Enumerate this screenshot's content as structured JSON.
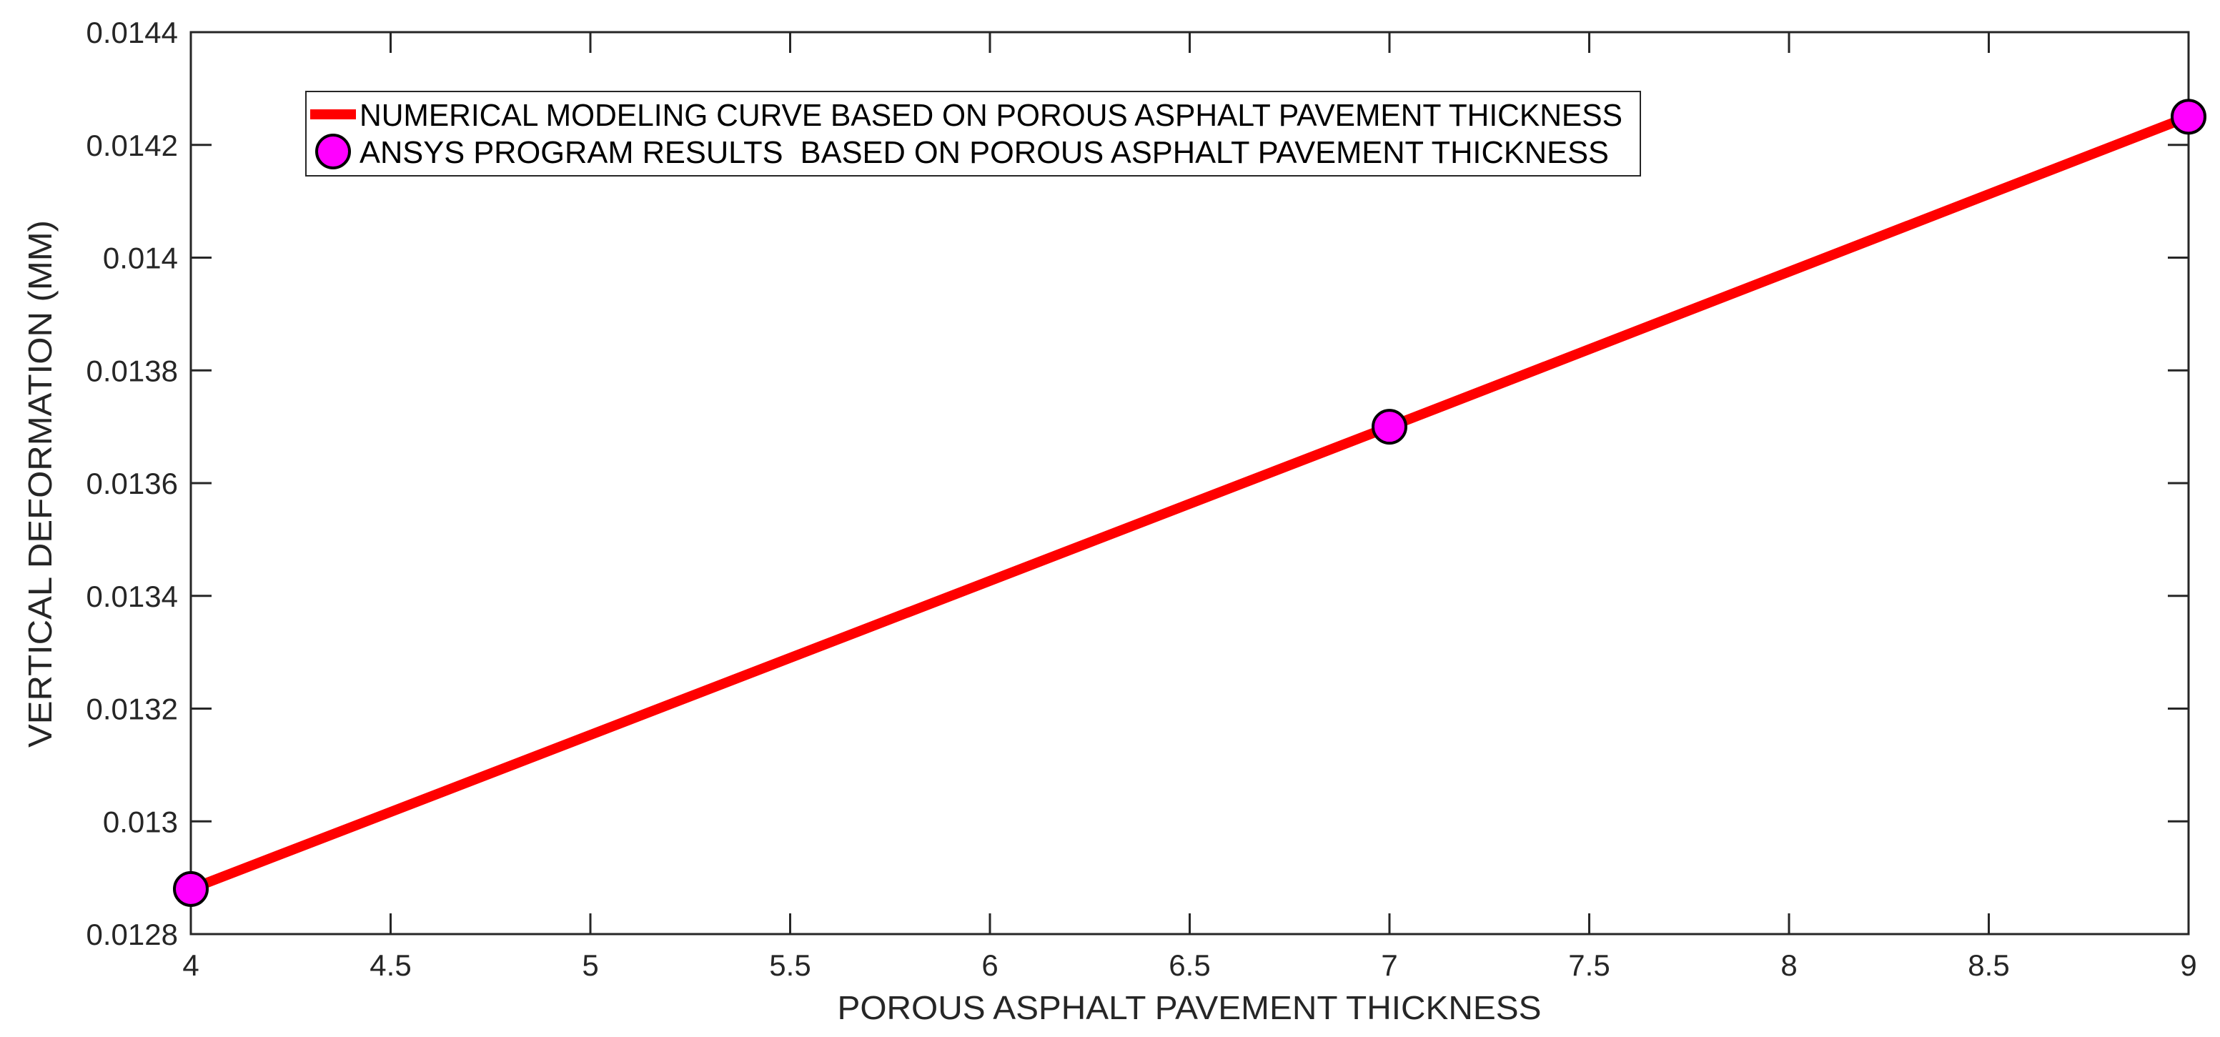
{
  "chart_data": {
    "type": "line",
    "title": "",
    "xlabel": "POROUS ASPHALT PAVEMENT THICKNESS",
    "ylabel": "VERTICAL DEFORMATION (MM)",
    "xlim": [
      4,
      9
    ],
    "ylim": [
      0.0128,
      0.0144
    ],
    "xticks": [
      "4",
      "4.5",
      "5",
      "5.5",
      "6",
      "6.5",
      "7",
      "7.5",
      "8",
      "8.5",
      "9"
    ],
    "yticks": [
      "0.0128",
      "0.013",
      "0.0132",
      "0.0134",
      "0.0136",
      "0.0138",
      "0.014",
      "0.0142",
      "0.0144"
    ],
    "grid": false,
    "legend_position": "upper left (inside)",
    "series": [
      {
        "name": "NUMERICAL MODELING CURVE BASED ON POROUS ASPHALT PAVEMENT THICKNESS",
        "style": "line",
        "color": "#FF0000",
        "x": [
          4,
          7,
          9
        ],
        "y": [
          0.01288,
          0.0137,
          0.01425
        ]
      },
      {
        "name": "ANSYS PROGRAM RESULTS  BASED ON POROUS ASPHALT PAVEMENT THICKNESS",
        "style": "marker",
        "marker": "circle",
        "color": "#FF00FF",
        "edge_color": "#000000",
        "x": [
          4,
          7,
          9
        ],
        "y": [
          0.01288,
          0.0137,
          0.01425
        ]
      }
    ]
  },
  "colors": {
    "axis": "#262626",
    "line": "#FF0000",
    "marker_fill": "#FF00FF",
    "marker_edge": "#000000",
    "background": "#FFFFFF"
  }
}
